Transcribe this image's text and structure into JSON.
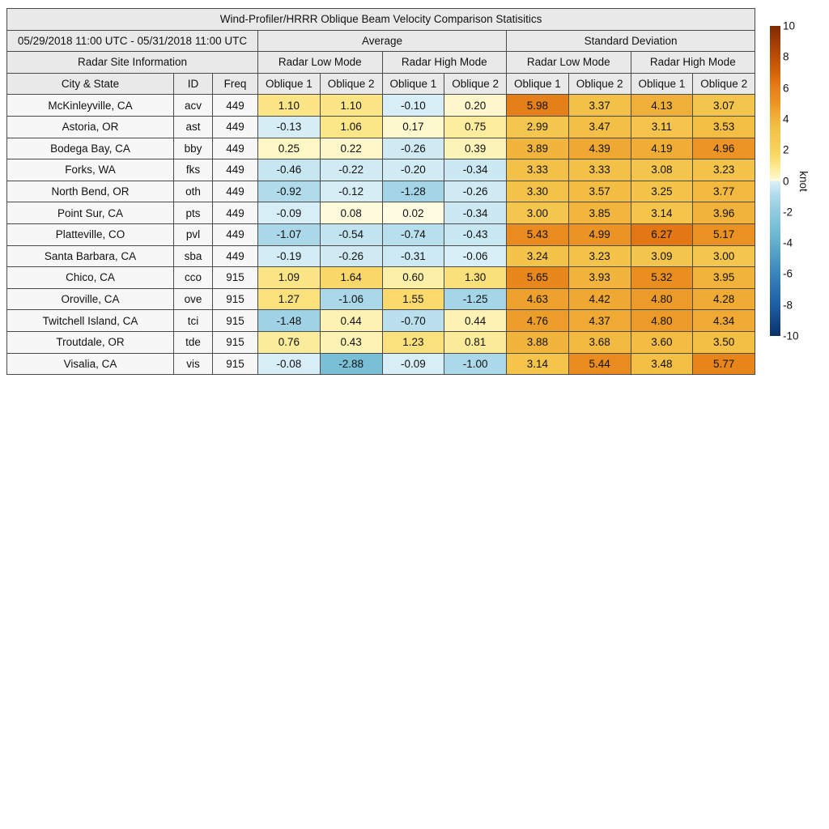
{
  "title": "Wind-Profiler/HRRR Oblique Beam Velocity Comparison Statisitics",
  "header": {
    "date_range": "05/29/2018 11:00 UTC - 05/31/2018 11:00 UTC",
    "group_average": "Average",
    "group_std": "Standard Deviation",
    "site_info": "Radar Site Information",
    "modes": [
      "Radar Low Mode",
      "Radar High Mode",
      "Radar Low Mode",
      "Radar High Mode"
    ],
    "col_headers": [
      "City & State",
      "ID",
      "Freq",
      "Oblique 1",
      "Oblique 2",
      "Oblique 1",
      "Oblique 2",
      "Oblique 1",
      "Oblique 2",
      "Oblique 1",
      "Oblique 2"
    ]
  },
  "colorbar": {
    "label": "knot",
    "min": -10,
    "max": 10,
    "ticks": [
      10,
      8,
      6,
      4,
      2,
      0,
      -2,
      -4,
      -6,
      -8,
      -10
    ]
  },
  "colormap": {
    "negative": [
      {
        "v": -10,
        "c": "#0A306B"
      },
      {
        "v": -9,
        "c": "#144787"
      },
      {
        "v": -8,
        "c": "#1D5FA3"
      },
      {
        "v": -7,
        "c": "#2B71B0"
      },
      {
        "v": -6,
        "c": "#3A84BC"
      },
      {
        "v": -5,
        "c": "#4D9AC4"
      },
      {
        "v": -4,
        "c": "#62AECC"
      },
      {
        "v": -3,
        "c": "#76BFD6"
      },
      {
        "v": -2,
        "c": "#90CBDF"
      },
      {
        "v": -1.5,
        "c": "#9ED2E4"
      },
      {
        "v": -1,
        "c": "#ACD9E9"
      },
      {
        "v": -0.5,
        "c": "#C4E5F1"
      },
      {
        "v": 0,
        "c": "#DCF0F8"
      }
    ],
    "positive": [
      {
        "v": 0,
        "c": "#FFFDE5"
      },
      {
        "v": 0.25,
        "c": "#FDF6C5"
      },
      {
        "v": 0.5,
        "c": "#FCF1AE"
      },
      {
        "v": 1,
        "c": "#FBE78C"
      },
      {
        "v": 1.5,
        "c": "#FADB6E"
      },
      {
        "v": 2,
        "c": "#F8D25C"
      },
      {
        "v": 2.5,
        "c": "#F6CB53"
      },
      {
        "v": 3,
        "c": "#F4C64E"
      },
      {
        "v": 3.5,
        "c": "#F3BF45"
      },
      {
        "v": 4,
        "c": "#F1B23B"
      },
      {
        "v": 4.5,
        "c": "#EFA62F"
      },
      {
        "v": 5,
        "c": "#EC9423"
      },
      {
        "v": 5.5,
        "c": "#E98A1E"
      },
      {
        "v": 6,
        "c": "#E58019"
      },
      {
        "v": 6.5,
        "c": "#E0700F"
      },
      {
        "v": 7,
        "c": "#D2630B"
      },
      {
        "v": 8,
        "c": "#BB4E08"
      },
      {
        "v": 9,
        "c": "#9E3C06"
      },
      {
        "v": 10,
        "c": "#7F2B04"
      }
    ]
  },
  "colors": {
    "header_bg": "#E9E9E9",
    "label_bg": "#F7F7F7",
    "border": "#4A4A4A"
  },
  "chart_data": {
    "type": "heatmap",
    "title": "Wind-Profiler/HRRR Oblique Beam Velocity Comparison Statisitics",
    "unit": "knot",
    "value_range": [
      -10,
      10
    ],
    "legend_position": "right",
    "column_groups": [
      {
        "label": "Average",
        "modes": [
          "Radar Low Mode",
          "Radar High Mode"
        ]
      },
      {
        "label": "Standard Deviation",
        "modes": [
          "Radar Low Mode",
          "Radar High Mode"
        ]
      }
    ],
    "value_columns": [
      "Avg Low Oblique 1",
      "Avg Low Oblique 2",
      "Avg High Oblique 1",
      "Avg High Oblique 2",
      "Std Low Oblique 1",
      "Std Low Oblique 2",
      "Std High Oblique 1",
      "Std High Oblique 2"
    ],
    "rows": [
      {
        "city": "McKinleyville, CA",
        "id": "acv",
        "freq": "449",
        "values": [
          1.1,
          1.1,
          -0.1,
          0.2,
          5.98,
          3.37,
          4.13,
          3.07
        ]
      },
      {
        "city": "Astoria, OR",
        "id": "ast",
        "freq": "449",
        "values": [
          -0.13,
          1.06,
          0.17,
          0.75,
          2.99,
          3.47,
          3.11,
          3.53
        ]
      },
      {
        "city": "Bodega Bay, CA",
        "id": "bby",
        "freq": "449",
        "values": [
          0.25,
          0.22,
          -0.26,
          0.39,
          3.89,
          4.39,
          4.19,
          4.96
        ]
      },
      {
        "city": "Forks, WA",
        "id": "fks",
        "freq": "449",
        "values": [
          -0.46,
          -0.22,
          -0.2,
          -0.34,
          3.33,
          3.33,
          3.08,
          3.23
        ]
      },
      {
        "city": "North Bend, OR",
        "id": "oth",
        "freq": "449",
        "values": [
          -0.92,
          -0.12,
          -1.28,
          -0.26,
          3.3,
          3.57,
          3.25,
          3.77
        ]
      },
      {
        "city": "Point Sur, CA",
        "id": "pts",
        "freq": "449",
        "values": [
          -0.09,
          0.08,
          0.02,
          -0.34,
          3.0,
          3.85,
          3.14,
          3.96
        ]
      },
      {
        "city": "Platteville, CO",
        "id": "pvl",
        "freq": "449",
        "values": [
          -1.07,
          -0.54,
          -0.74,
          -0.43,
          5.43,
          4.99,
          6.27,
          5.17
        ]
      },
      {
        "city": "Santa Barbara, CA",
        "id": "sba",
        "freq": "449",
        "values": [
          -0.19,
          -0.26,
          -0.31,
          -0.06,
          3.24,
          3.23,
          3.09,
          3.0
        ]
      },
      {
        "city": "Chico, CA",
        "id": "cco",
        "freq": "915",
        "values": [
          1.09,
          1.64,
          0.6,
          1.3,
          5.65,
          3.93,
          5.32,
          3.95
        ]
      },
      {
        "city": "Oroville, CA",
        "id": "ove",
        "freq": "915",
        "values": [
          1.27,
          -1.06,
          1.55,
          -1.25,
          4.63,
          4.42,
          4.8,
          4.28
        ]
      },
      {
        "city": "Twitchell Island, CA",
        "id": "tci",
        "freq": "915",
        "values": [
          -1.48,
          0.44,
          -0.7,
          0.44,
          4.76,
          4.37,
          4.8,
          4.34
        ]
      },
      {
        "city": "Troutdale, OR",
        "id": "tde",
        "freq": "915",
        "values": [
          0.76,
          0.43,
          1.23,
          0.81,
          3.88,
          3.68,
          3.6,
          3.5
        ]
      },
      {
        "city": "Visalia, CA",
        "id": "vis",
        "freq": "915",
        "values": [
          -0.08,
          -2.88,
          -0.09,
          -1.0,
          3.14,
          5.44,
          3.48,
          5.77
        ]
      }
    ]
  }
}
